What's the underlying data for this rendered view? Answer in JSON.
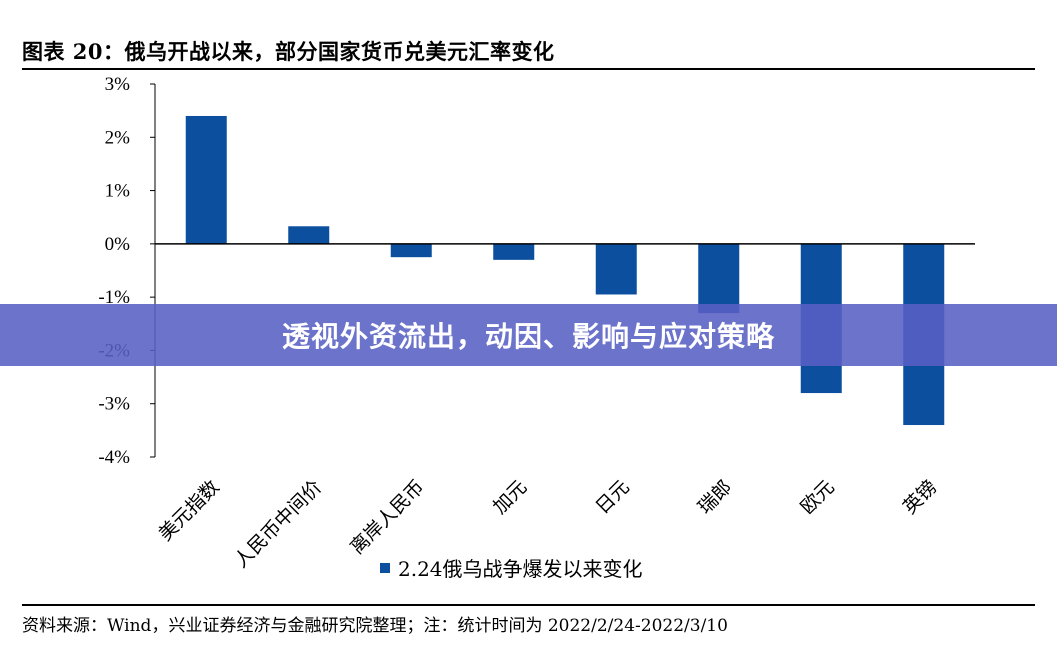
{
  "header": {
    "title": "图表 20：俄乌开战以来，部分国家货币兑美元汇率变化"
  },
  "footer": {
    "source": "资料来源：Wind，兴业证券经济与金融研究院整理；注：统计时间为 2022/2/24-2022/3/10"
  },
  "banner": {
    "text": "透视外资流出，动因、影响与应对策略"
  },
  "colors": {
    "bar": "#0B4F9E"
  },
  "chart_data": {
    "type": "bar",
    "title": "图表 20：俄乌开战以来，部分国家货币兑美元汇率变化",
    "xlabel": "",
    "ylabel": "",
    "categories": [
      "美元指数",
      "人民币中间价",
      "离岸人民币",
      "加元",
      "日元",
      "瑞郎",
      "欧元",
      "英镑"
    ],
    "series": [
      {
        "name": "2.24俄乌战争爆发以来变化",
        "values": [
          2.4,
          0.33,
          -0.25,
          -0.3,
          -0.95,
          -1.3,
          -2.8,
          -3.4
        ]
      }
    ],
    "ylim": [
      -4,
      3
    ],
    "yticks": [
      3,
      2,
      1,
      0,
      -1,
      -2,
      -3,
      -4
    ],
    "ytick_labels": [
      "3%",
      "2%",
      "1%",
      "0%",
      "-1%",
      "-2%",
      "-3%",
      "-4%"
    ],
    "grid": false,
    "legend": "bottom-center"
  }
}
